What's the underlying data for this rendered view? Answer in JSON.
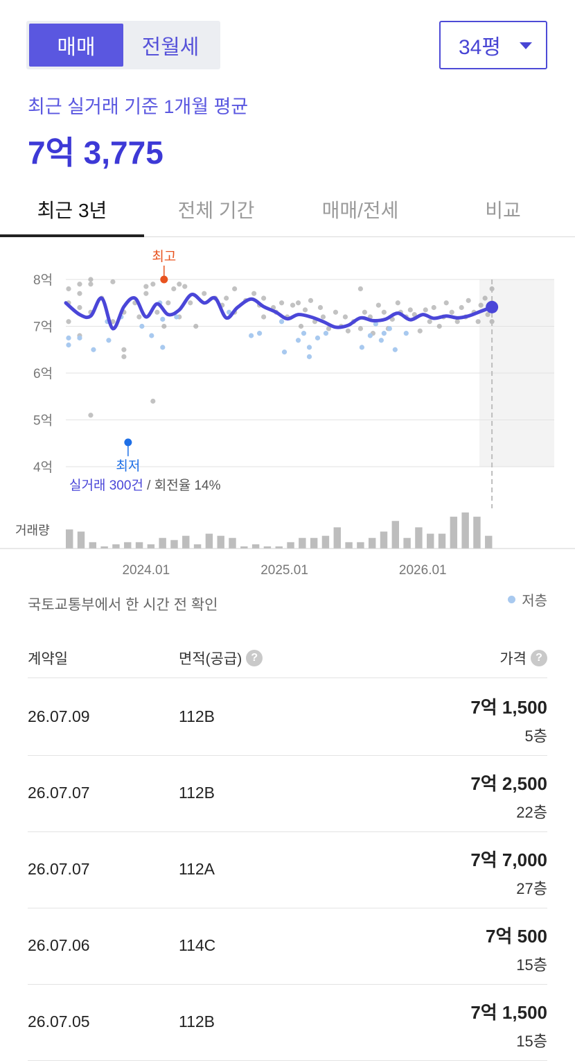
{
  "deal_toggle": {
    "sale": "매매",
    "rent": "전월세",
    "selected": "매매"
  },
  "size_select": {
    "value": "34평",
    "icon": "caret-down-icon"
  },
  "summary": {
    "label": "최근 실거래 기준 1개월 평균",
    "value": "7억 3,775"
  },
  "tabs": [
    {
      "label": "최근 3년",
      "active": true
    },
    {
      "label": "전체 기간",
      "active": false
    },
    {
      "label": "매매/전세",
      "active": false
    },
    {
      "label": "비교",
      "active": false
    }
  ],
  "colors": {
    "accent": "#4a46d8",
    "high": "#e8531f",
    "low": "#1e6fe6",
    "low_floor_dot": "#a8c9ef",
    "normal_dot": "#9a9a9a"
  },
  "chart_data": {
    "type": "line",
    "y_labels": [
      "8억",
      "7억",
      "6억",
      "5억",
      "4억"
    ],
    "ylim": [
      4,
      8
    ],
    "y_unit": "억",
    "x_ticks": [
      "2024.01",
      "2025.01",
      "2026.01"
    ],
    "x_tick_positions": [
      2024.0,
      2025.0,
      2026.0
    ],
    "xlim": [
      2023.42,
      2026.95
    ],
    "projection_from": 2026.5,
    "high_label": "최고",
    "high_point": {
      "x": 2024.13,
      "y": 8.0
    },
    "low_label": "최저",
    "low_point": {
      "x": 2023.87,
      "y": 4.52
    },
    "summary_text": {
      "count": "실거래 300건",
      "separator": " / ",
      "turnover": "회전율 14%"
    },
    "volume_label": "거래량",
    "series": [
      {
        "type": "line",
        "x": [
          2023.42,
          2023.52,
          2023.6,
          2023.68,
          2023.76,
          2023.84,
          2023.92,
          2024.0,
          2024.08,
          2024.16,
          2024.24,
          2024.33,
          2024.42,
          2024.5,
          2024.58,
          2024.66,
          2024.76,
          2024.85,
          2024.94,
          2025.02,
          2025.1,
          2025.19,
          2025.28,
          2025.37,
          2025.46,
          2025.55,
          2025.64,
          2025.73,
          2025.82,
          2025.91,
          2026.0,
          2026.08,
          2026.17,
          2026.25,
          2026.33,
          2026.42,
          2026.5
        ],
        "y": [
          7.5,
          7.25,
          7.22,
          7.6,
          6.95,
          7.42,
          7.6,
          7.2,
          7.48,
          7.25,
          7.35,
          7.68,
          7.5,
          7.6,
          7.18,
          7.4,
          7.58,
          7.42,
          7.3,
          7.16,
          7.25,
          7.2,
          7.1,
          6.98,
          7.02,
          7.18,
          7.12,
          7.15,
          7.28,
          7.14,
          7.25,
          7.17,
          7.22,
          7.18,
          7.22,
          7.32,
          7.41
        ]
      }
    ],
    "scatter_normal": [
      [
        2023.44,
        7.8
      ],
      [
        2023.44,
        7.5
      ],
      [
        2023.44,
        7.1
      ],
      [
        2023.52,
        7.9
      ],
      [
        2023.52,
        7.7
      ],
      [
        2023.52,
        7.4
      ],
      [
        2023.52,
        6.8
      ],
      [
        2023.6,
        8.0
      ],
      [
        2023.6,
        7.9
      ],
      [
        2023.6,
        5.1
      ],
      [
        2023.6,
        7.3
      ],
      [
        2023.68,
        7.6
      ],
      [
        2023.76,
        7.95
      ],
      [
        2023.76,
        7.1
      ],
      [
        2023.84,
        7.3
      ],
      [
        2023.84,
        6.5
      ],
      [
        2023.84,
        6.35
      ],
      [
        2023.92,
        7.5
      ],
      [
        2023.95,
        7.2
      ],
      [
        2024.0,
        7.85
      ],
      [
        2024.0,
        7.7
      ],
      [
        2024.05,
        7.9
      ],
      [
        2024.05,
        5.4
      ],
      [
        2024.08,
        7.3
      ],
      [
        2024.13,
        7.0
      ],
      [
        2024.16,
        7.5
      ],
      [
        2024.2,
        7.8
      ],
      [
        2024.24,
        7.9
      ],
      [
        2024.24,
        7.2
      ],
      [
        2024.28,
        7.85
      ],
      [
        2024.32,
        7.5
      ],
      [
        2024.36,
        7.0
      ],
      [
        2024.42,
        7.7
      ],
      [
        2024.5,
        7.6
      ],
      [
        2024.55,
        7.45
      ],
      [
        2024.58,
        7.6
      ],
      [
        2024.64,
        7.8
      ],
      [
        2024.64,
        7.3
      ],
      [
        2024.72,
        7.55
      ],
      [
        2024.78,
        7.7
      ],
      [
        2024.82,
        7.45
      ],
      [
        2024.85,
        7.2
      ],
      [
        2024.85,
        7.6
      ],
      [
        2024.92,
        7.4
      ],
      [
        2024.94,
        7.3
      ],
      [
        2024.98,
        7.5
      ],
      [
        2025.02,
        7.2
      ],
      [
        2025.06,
        7.45
      ],
      [
        2025.1,
        7.5
      ],
      [
        2025.12,
        7.0
      ],
      [
        2025.15,
        7.35
      ],
      [
        2025.19,
        7.55
      ],
      [
        2025.22,
        7.1
      ],
      [
        2025.26,
        7.4
      ],
      [
        2025.28,
        7.2
      ],
      [
        2025.32,
        6.95
      ],
      [
        2025.37,
        7.3
      ],
      [
        2025.41,
        7.0
      ],
      [
        2025.44,
        7.2
      ],
      [
        2025.46,
        6.9
      ],
      [
        2025.5,
        7.1
      ],
      [
        2025.55,
        6.95
      ],
      [
        2025.55,
        7.8
      ],
      [
        2025.58,
        7.3
      ],
      [
        2025.62,
        7.2
      ],
      [
        2025.64,
        6.85
      ],
      [
        2025.68,
        7.45
      ],
      [
        2025.72,
        7.3
      ],
      [
        2025.75,
        6.95
      ],
      [
        2025.78,
        7.15
      ],
      [
        2025.82,
        7.5
      ],
      [
        2025.84,
        7.3
      ],
      [
        2025.88,
        7.2
      ],
      [
        2025.91,
        7.35
      ],
      [
        2025.94,
        7.25
      ],
      [
        2025.98,
        6.9
      ],
      [
        2026.02,
        7.35
      ],
      [
        2026.05,
        7.1
      ],
      [
        2026.08,
        7.4
      ],
      [
        2026.12,
        7.0
      ],
      [
        2026.15,
        7.2
      ],
      [
        2026.17,
        7.5
      ],
      [
        2026.21,
        7.3
      ],
      [
        2026.25,
        7.1
      ],
      [
        2026.28,
        7.4
      ],
      [
        2026.31,
        7.2
      ],
      [
        2026.33,
        7.55
      ],
      [
        2026.37,
        7.3
      ],
      [
        2026.4,
        7.1
      ],
      [
        2026.42,
        7.45
      ],
      [
        2026.45,
        7.6
      ],
      [
        2026.47,
        7.25
      ],
      [
        2026.5,
        7.8
      ],
      [
        2026.5,
        7.1
      ],
      [
        2026.5,
        7.5
      ]
    ],
    "scatter_low_floor": [
      [
        2023.44,
        6.75
      ],
      [
        2023.44,
        6.6
      ],
      [
        2023.52,
        6.75
      ],
      [
        2023.62,
        6.5
      ],
      [
        2023.72,
        7.1
      ],
      [
        2023.73,
        6.7
      ],
      [
        2023.82,
        7.2
      ],
      [
        2023.97,
        7.0
      ],
      [
        2024.04,
        6.8
      ],
      [
        2024.1,
        7.5
      ],
      [
        2024.12,
        7.15
      ],
      [
        2024.12,
        6.55
      ],
      [
        2024.22,
        7.2
      ],
      [
        2024.6,
        7.3
      ],
      [
        2024.76,
        6.8
      ],
      [
        2024.82,
        6.85
      ],
      [
        2024.98,
        7.1
      ],
      [
        2025.0,
        6.45
      ],
      [
        2025.1,
        6.7
      ],
      [
        2025.14,
        6.85
      ],
      [
        2025.18,
        6.55
      ],
      [
        2025.18,
        6.35
      ],
      [
        2025.24,
        6.75
      ],
      [
        2025.3,
        6.85
      ],
      [
        2025.56,
        6.55
      ],
      [
        2025.62,
        6.8
      ],
      [
        2025.66,
        7.05
      ],
      [
        2025.7,
        6.7
      ],
      [
        2025.72,
        6.85
      ],
      [
        2025.76,
        6.95
      ],
      [
        2025.8,
        6.5
      ],
      [
        2025.88,
        6.85
      ]
    ],
    "volume": [
      9,
      8,
      3,
      1,
      2,
      3,
      3,
      2,
      5,
      4,
      6,
      2,
      7,
      6,
      5,
      1,
      2,
      1,
      1,
      3,
      5,
      5,
      6,
      10,
      3,
      3,
      5,
      8,
      13,
      5,
      10,
      7,
      7,
      15,
      17,
      15,
      6
    ]
  },
  "source_text": "국토교통부에서 한 시간 전 확인",
  "legend": {
    "low_floor": "저층"
  },
  "table": {
    "headers": {
      "date": "계약일",
      "area": "면적(공급)",
      "price": "가격"
    },
    "help_icon": "help-circle-icon",
    "help_symbol": "?",
    "rows": [
      {
        "date": "26.07.09",
        "area": "112B",
        "price": "7억 1,500",
        "floor": "5층"
      },
      {
        "date": "26.07.07",
        "area": "112B",
        "price": "7억 2,500",
        "floor": "22층"
      },
      {
        "date": "26.07.07",
        "area": "112A",
        "price": "7억 7,000",
        "floor": "27층"
      },
      {
        "date": "26.07.06",
        "area": "114C",
        "price": "7억 500",
        "floor": "15층"
      },
      {
        "date": "26.07.05",
        "area": "112B",
        "price": "7억 1,500",
        "floor": "15층"
      }
    ]
  }
}
